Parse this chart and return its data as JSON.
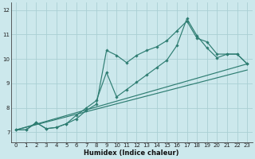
{
  "xlabel": "Humidex (Indice chaleur)",
  "bg_color": "#cce8ec",
  "grid_color": "#aacfd4",
  "line_color": "#2e7d72",
  "xlim": [
    -0.5,
    23.5
  ],
  "ylim": [
    6.6,
    12.3
  ],
  "xticks": [
    0,
    1,
    2,
    3,
    4,
    5,
    6,
    7,
    8,
    9,
    10,
    11,
    12,
    13,
    14,
    15,
    16,
    17,
    18,
    19,
    20,
    21,
    22,
    23
  ],
  "yticks": [
    7,
    8,
    9,
    10,
    11,
    12
  ],
  "line1_x": [
    0,
    1,
    2,
    3,
    4,
    5,
    6,
    7,
    8,
    9,
    10,
    11,
    12,
    13,
    14,
    15,
    16,
    17,
    18,
    19,
    20,
    21,
    22,
    23
  ],
  "line1_y": [
    7.1,
    7.1,
    7.4,
    7.15,
    7.2,
    7.35,
    7.55,
    7.9,
    8.15,
    10.35,
    10.15,
    9.85,
    10.15,
    10.35,
    10.5,
    10.75,
    11.15,
    11.55,
    10.85,
    10.7,
    10.2,
    10.2,
    10.2,
    9.8
  ],
  "line2_x": [
    0,
    1,
    2,
    3,
    4,
    5,
    6,
    7,
    8,
    9,
    10,
    11,
    12,
    13,
    14,
    15,
    16,
    17,
    18,
    19,
    20,
    21,
    22,
    23
  ],
  "line2_y": [
    7.1,
    7.1,
    7.4,
    7.15,
    7.2,
    7.35,
    7.7,
    8.0,
    8.3,
    9.45,
    8.45,
    8.75,
    9.05,
    9.35,
    9.65,
    9.95,
    10.55,
    11.65,
    10.95,
    10.45,
    10.05,
    10.2,
    10.2,
    9.8
  ],
  "line3_x": [
    0,
    23
  ],
  "line3_y": [
    7.1,
    9.8
  ],
  "line4_x": [
    0,
    23
  ],
  "line4_y": [
    7.1,
    9.55
  ]
}
